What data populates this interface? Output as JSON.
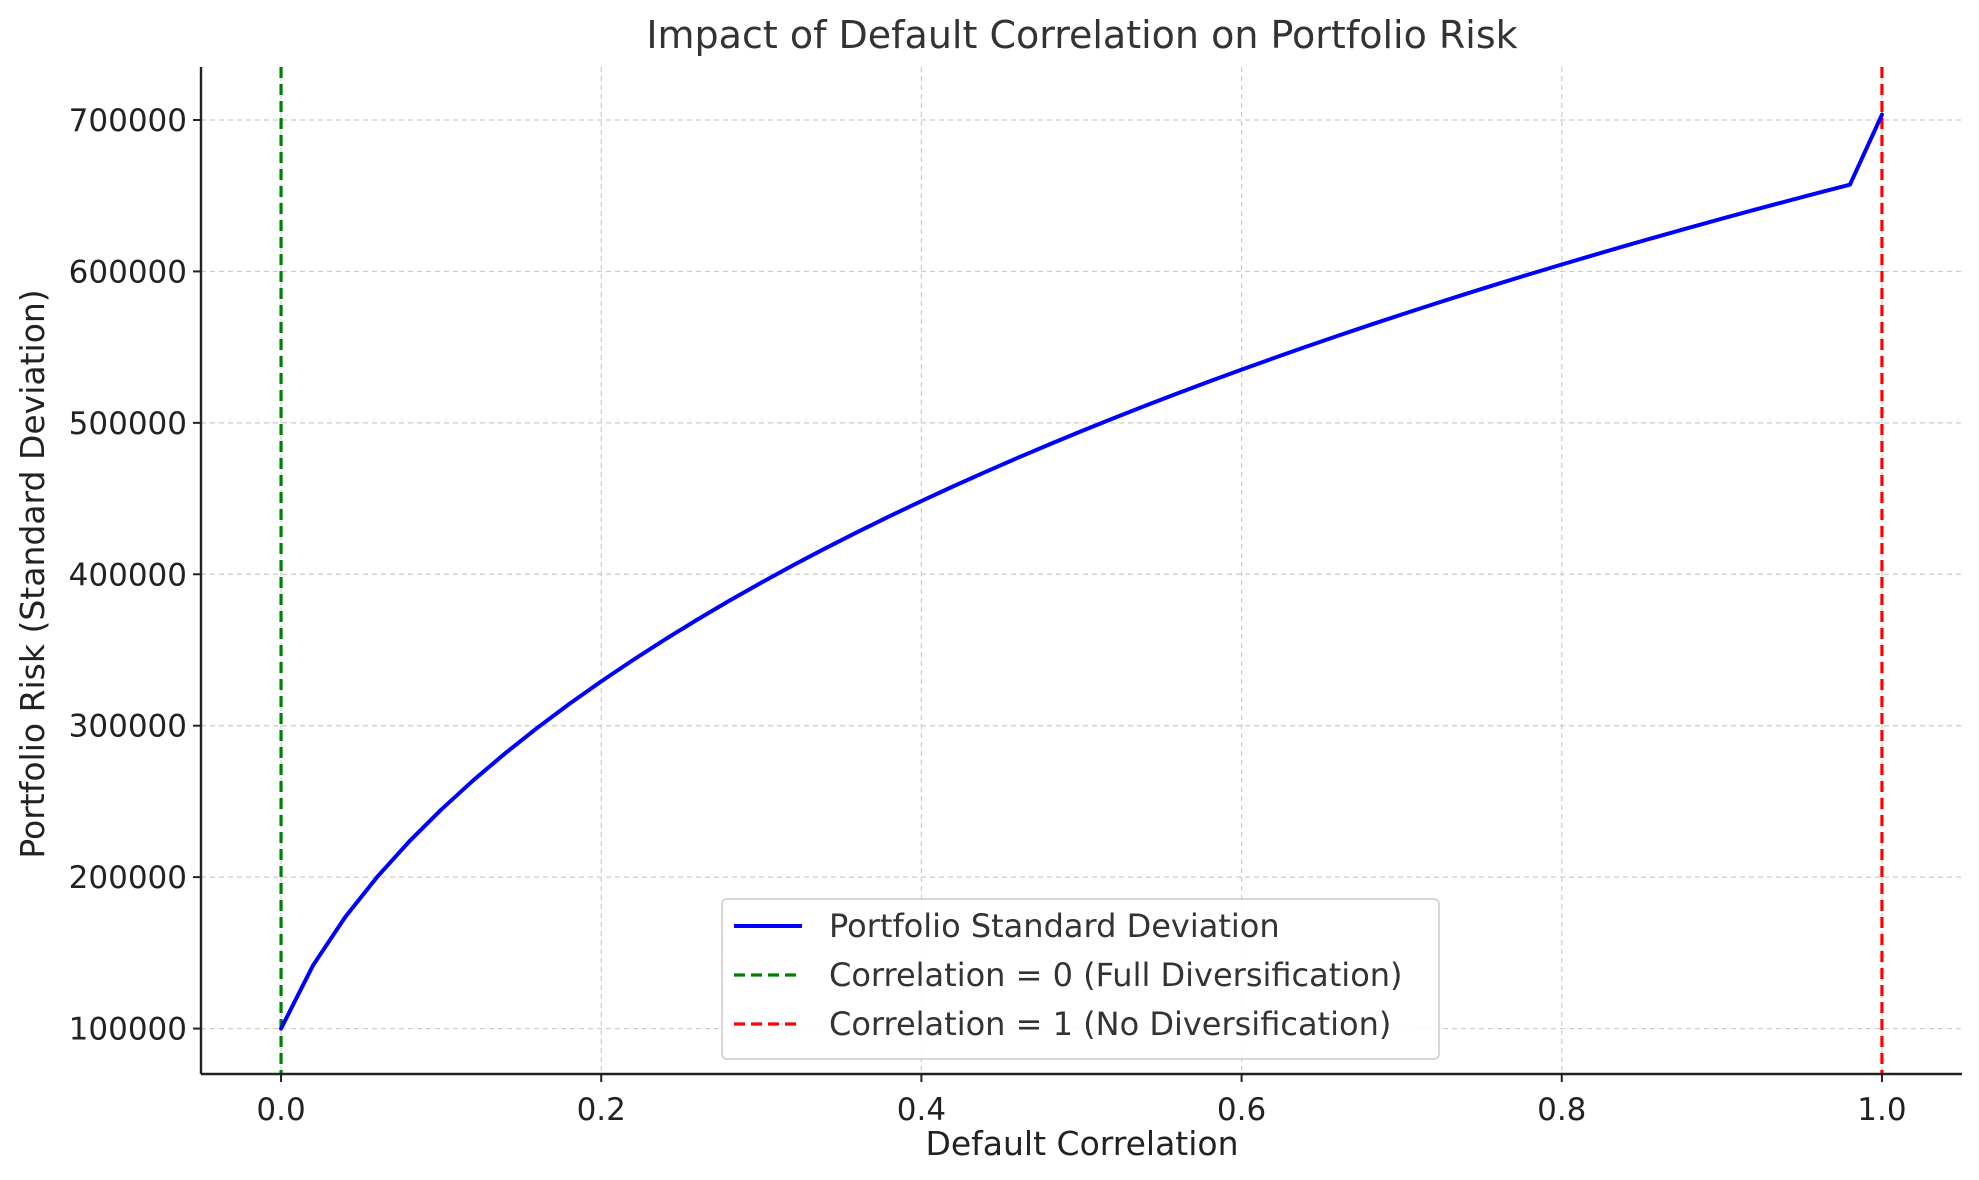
{
  "chart_data": {
    "type": "line",
    "title": "Impact of Default Correlation on Portfolio Risk",
    "xlabel": "Default Correlation",
    "ylabel": "Portfolio Risk (Standard Deviation)",
    "xlim": [
      -0.05,
      1.05
    ],
    "ylim": [
      70000,
      735000
    ],
    "xticks": [
      0.0,
      0.2,
      0.4,
      0.6,
      0.8,
      1.0
    ],
    "xtick_labels": [
      "0.0",
      "0.2",
      "0.4",
      "0.6",
      "0.8",
      "1.0"
    ],
    "yticks": [
      100000,
      200000,
      300000,
      400000,
      500000,
      600000,
      700000
    ],
    "ytick_labels": [
      "100000",
      "200000",
      "300000",
      "400000",
      "500000",
      "600000",
      "700000"
    ],
    "grid": true,
    "legend_position": "bottom-center",
    "series": [
      {
        "name": "Portfolio Standard Deviation",
        "color": "#0000ff",
        "style": "solid",
        "x": [
          0.0,
          0.02,
          0.04,
          0.06,
          0.08,
          0.1,
          0.12,
          0.14,
          0.16,
          0.18,
          0.2,
          0.22,
          0.24,
          0.26,
          0.28,
          0.3,
          0.32,
          0.34,
          0.36,
          0.38,
          0.4,
          0.42,
          0.44,
          0.46,
          0.48,
          0.5,
          0.52,
          0.54,
          0.56,
          0.58,
          0.6,
          0.62,
          0.64,
          0.66,
          0.68,
          0.7,
          0.72,
          0.74,
          0.76,
          0.78,
          0.8,
          0.82,
          0.84,
          0.86,
          0.88,
          0.9,
          0.92,
          0.94,
          0.96,
          0.98,
          1.0
        ],
        "y": [
          100000,
          141774,
          173494,
          200107,
          223473,
          244540,
          263854,
          281769,
          298530,
          314318,
          329272,
          343497,
          357071,
          370062,
          382522,
          394500,
          406035,
          417160,
          427907,
          438302,
          448372,
          458138,
          467620,
          476837,
          485805,
          494541,
          503058,
          511367,
          519481,
          527409,
          535161,
          542745,
          550171,
          557443,
          564570,
          571557,
          578411,
          585135,
          591736,
          598218,
          604584,
          610839,
          616988,
          623032,
          628977,
          634823,
          640576,
          646237,
          651810,
          657296,
          703562
        ]
      },
      {
        "name": "Correlation = 0 (Full Diversification)",
        "color": "#008000",
        "style": "dashed",
        "vline_x": 0.0
      },
      {
        "name": "Correlation = 1 (No Diversification)",
        "color": "#ff0000",
        "style": "dashed",
        "vline_x": 1.0
      }
    ]
  }
}
